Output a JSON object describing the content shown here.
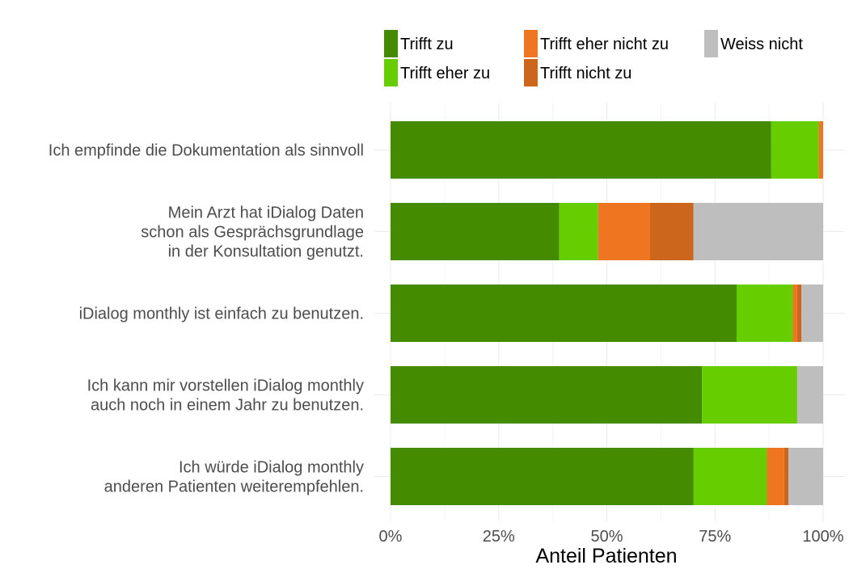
{
  "chart_data": {
    "type": "bar",
    "orientation": "horizontal",
    "stacked": true,
    "xlabel": "Anteil Patienten",
    "xlim": [
      0,
      100
    ],
    "x_ticks": [
      "0%",
      "25%",
      "50%",
      "75%",
      "100%"
    ],
    "grid": true,
    "legend_position": "top",
    "categories": [
      [
        "Ich empfinde die Dokumentation als sinnvoll"
      ],
      [
        "Mein Arzt hat iDialog Daten",
        "schon als Gesprächsgrundlage",
        "in der Konsultation genutzt."
      ],
      [
        "iDialog monthly ist einfach zu benutzen."
      ],
      [
        "Ich kann mir vorstellen iDialog monthly",
        "auch noch in einem Jahr zu benutzen."
      ],
      [
        "Ich würde iDialog monthly",
        "anderen Patienten weiterempfehlen."
      ]
    ],
    "series": [
      {
        "name": "Trifft zu",
        "color": "#458B00",
        "values": [
          88,
          39,
          80,
          72,
          70
        ]
      },
      {
        "name": "Trifft eher zu",
        "color": "#66CD00",
        "values": [
          11,
          9,
          13,
          22,
          17
        ]
      },
      {
        "name": "Trifft eher nicht zu",
        "color": "#EE7621",
        "values": [
          1,
          12,
          1,
          0,
          4
        ]
      },
      {
        "name": "Trifft nicht zu",
        "color": "#CD661D",
        "values": [
          0,
          10,
          1,
          0,
          1
        ]
      },
      {
        "name": "Weiss nicht",
        "color": "#BEBEBE",
        "values": [
          0,
          30,
          5,
          6,
          8
        ]
      }
    ]
  }
}
